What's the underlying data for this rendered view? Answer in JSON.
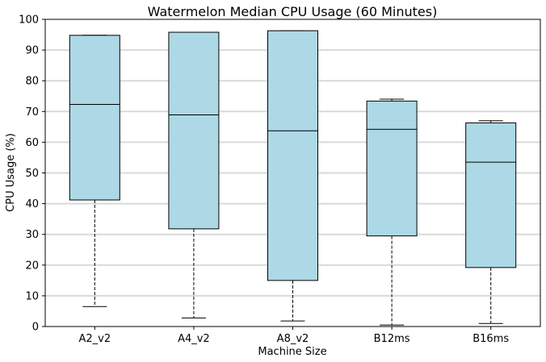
{
  "chart_data": {
    "type": "boxplot",
    "title": "Watermelon Median CPU Usage (60 Minutes)",
    "xlabel": "Machine Size",
    "ylabel": "CPU Usage (%)",
    "ylim": [
      0,
      100
    ],
    "yticks": [
      0,
      10,
      20,
      30,
      40,
      50,
      60,
      70,
      80,
      90,
      100
    ],
    "grid": "horizontal",
    "colors": {
      "box_fill": "#add8e6",
      "box_edge": "#000000",
      "grid": "#d9d9d9"
    },
    "categories": [
      "A2_v2",
      "A4_v2",
      "A8_v2",
      "B12ms",
      "B16ms"
    ],
    "boxes": [
      {
        "label": "A2_v2",
        "min": 6.5,
        "q1": 41.2,
        "median": 72.3,
        "q3": 94.8,
        "max": 94.8
      },
      {
        "label": "A4_v2",
        "min": 2.8,
        "q1": 31.8,
        "median": 68.9,
        "q3": 95.8,
        "max": 95.8
      },
      {
        "label": "A8_v2",
        "min": 1.8,
        "q1": 15.0,
        "median": 63.7,
        "q3": 96.3,
        "max": 96.3
      },
      {
        "label": "B12ms",
        "min": 0.5,
        "q1": 29.5,
        "median": 64.2,
        "q3": 73.4,
        "max": 74.0
      },
      {
        "label": "B16ms",
        "min": 1.0,
        "q1": 19.2,
        "median": 53.5,
        "q3": 66.3,
        "max": 67.0
      }
    ]
  }
}
